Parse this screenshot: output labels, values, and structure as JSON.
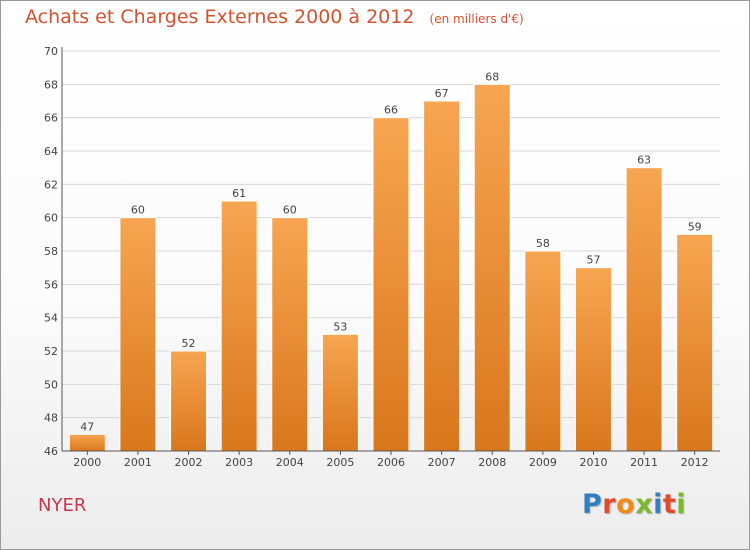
{
  "title": "Achats et Charges Externes 2000 à 2012",
  "unit": "(en milliers d'€)",
  "commune": "NYER",
  "brand": {
    "letters": [
      "P",
      "r",
      "o",
      "x",
      "i",
      "t",
      "i"
    ],
    "colors": [
      "#2f7fc4",
      "#e04a2e",
      "#f08a1a",
      "#7cb82f",
      "#2f7fc4",
      "#e04a2e",
      "#7cb82f"
    ]
  },
  "colors": {
    "title": "#d4522f",
    "commune": "#c8384b",
    "bar_light": "#f7a551",
    "bar_dark": "#d9771c",
    "grid": "#d7d7d7",
    "axis": "#555555"
  },
  "chart_data": {
    "type": "bar",
    "title": "Achats et Charges Externes 2000 à 2012",
    "xlabel": "",
    "ylabel": "",
    "categories": [
      "2000",
      "2001",
      "2002",
      "2003",
      "2004",
      "2005",
      "2006",
      "2007",
      "2008",
      "2009",
      "2010",
      "2011",
      "2012"
    ],
    "values": [
      47,
      60,
      52,
      61,
      60,
      53,
      66,
      67,
      68,
      58,
      57,
      63,
      59
    ],
    "ylim": [
      46,
      70
    ],
    "yticks": [
      46,
      48,
      50,
      52,
      54,
      56,
      58,
      60,
      62,
      64,
      66,
      68,
      70
    ],
    "grid": true,
    "legend": "none"
  }
}
